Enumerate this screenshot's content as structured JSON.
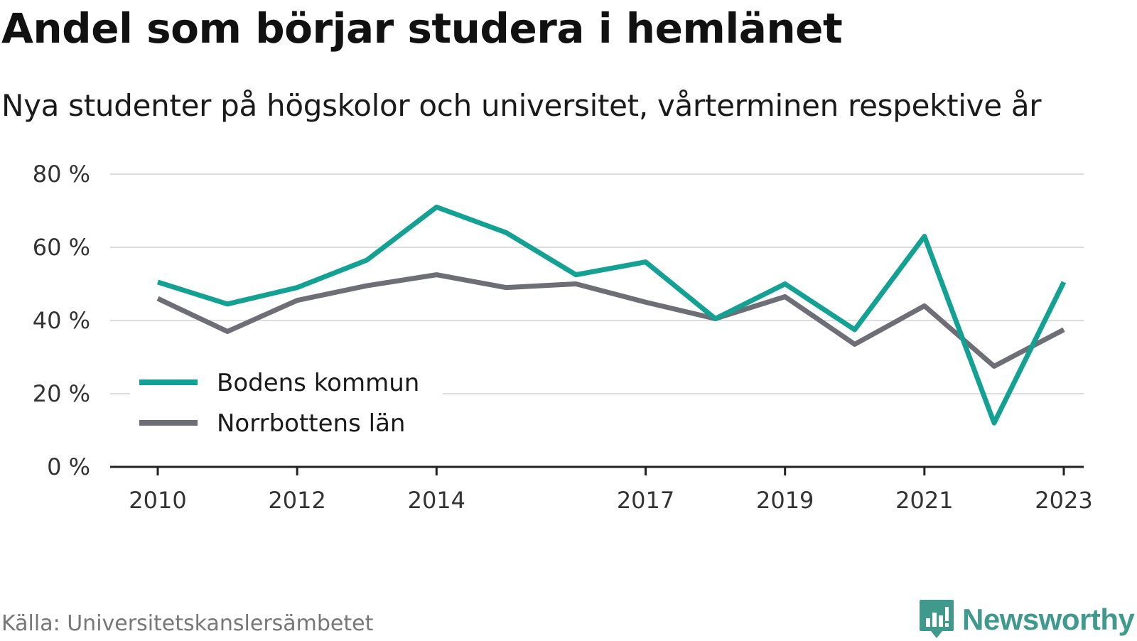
{
  "title": "Andel som börjar studera i hemlänet",
  "subtitle": "Nya studenter på högskolor och universitet, vårterminen respektive år",
  "source": "Källa: Universitetskanslersämbetet",
  "brand": {
    "name": "Newsworthy",
    "icon": "newsworthy-logo-icon",
    "color": "#3f9a8d"
  },
  "chart_data": {
    "type": "line",
    "x": [
      2010,
      2011,
      2012,
      2013,
      2014,
      2015,
      2016,
      2017,
      2018,
      2019,
      2020,
      2021,
      2022,
      2023
    ],
    "x_tick_labels": [
      "2010",
      "2012",
      "2014",
      "2017",
      "2019",
      "2021",
      "2023"
    ],
    "y_tick_labels": [
      "0 %",
      "20 %",
      "40 %",
      "60 %",
      "80 %"
    ],
    "y_ticks": [
      0,
      20,
      40,
      60,
      80
    ],
    "ylim": [
      0,
      80
    ],
    "grid": true,
    "legend_position": "bottom-left",
    "series": [
      {
        "name": "Bodens kommun",
        "color": "#12a193",
        "values": [
          50.5,
          44.5,
          49,
          56.5,
          71,
          64,
          52.5,
          56,
          40.5,
          50,
          37.5,
          63,
          12,
          50.5
        ]
      },
      {
        "name": "Norrbottens län",
        "color": "#6e6e76",
        "values": [
          46,
          37,
          45.5,
          49.5,
          52.5,
          49,
          50,
          45,
          40.5,
          46.5,
          33.5,
          44,
          27.5,
          37.5
        ]
      }
    ]
  }
}
